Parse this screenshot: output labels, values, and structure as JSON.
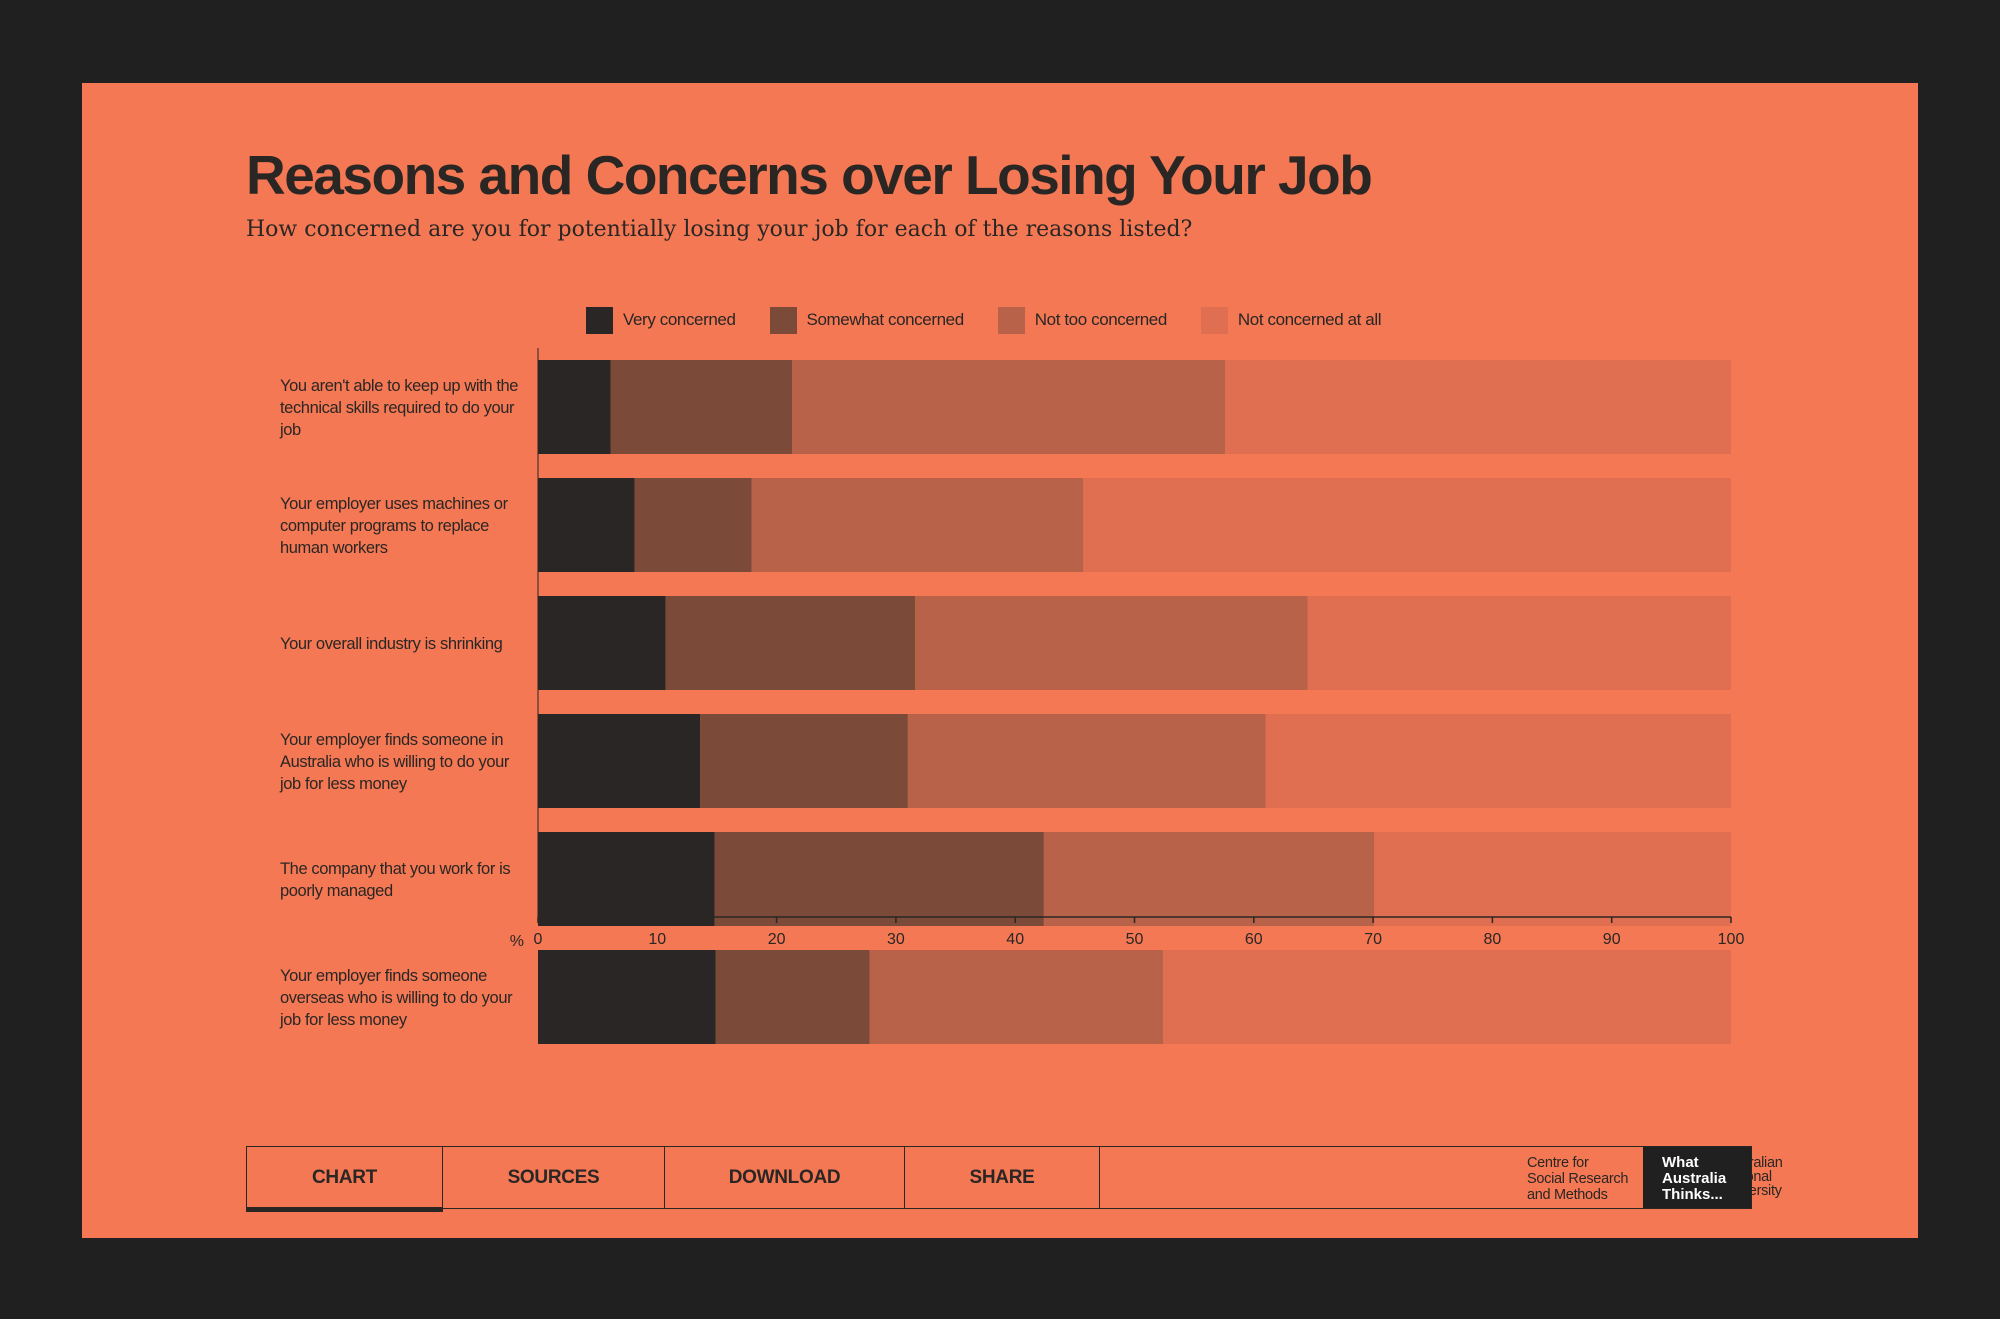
{
  "title": "Reasons and Concerns over Losing Your Job",
  "subtitle": "How concerned are you for potentially losing your job for each of the reasons listed?",
  "colors": {
    "background_outer": "#212021",
    "card": "#F47854",
    "very_concerned": "#2A2625",
    "somewhat_concerned": "#7B4A39",
    "not_too_concerned": "#B8624A",
    "not_concerned_at_all": "#E06F51"
  },
  "legend": [
    {
      "label": "Very concerned",
      "color": "#2A2625"
    },
    {
      "label": "Somewhat concerned",
      "color": "#7B4A39"
    },
    {
      "label": "Not too concerned",
      "color": "#B8624A"
    },
    {
      "label": "Not concerned at all",
      "color": "#E06F51"
    }
  ],
  "chart_data": {
    "type": "bar",
    "orientation": "horizontal",
    "stacked": true,
    "title": "Reasons and Concerns over Losing Your Job",
    "subtitle": "How concerned are you for potentially losing your job for each of the reasons listed?",
    "xlabel": "%",
    "ylabel": "",
    "xlim": [
      0,
      100
    ],
    "xticks": [
      0,
      10,
      20,
      30,
      40,
      50,
      60,
      70,
      80,
      90,
      100
    ],
    "legend_position": "top",
    "grid": false,
    "categories": [
      [
        "You aren't able to keep up with the",
        "technical skills required to do your",
        "job"
      ],
      [
        "Your employer uses machines or",
        "computer programs to replace",
        "human workers"
      ],
      [
        "Your overall industry is shrinking"
      ],
      [
        "Your employer finds someone in",
        "Australia who is willing to do your",
        "job for less money"
      ],
      [
        "The company that you work for is",
        "poorly managed"
      ],
      [
        "Your employer finds someone",
        "overseas who is willing to do your",
        "job for less money"
      ]
    ],
    "series": [
      {
        "name": "Very concerned",
        "values": [
          6.1,
          8.1,
          10.7,
          13.6,
          14.8,
          14.9
        ]
      },
      {
        "name": "Somewhat concerned",
        "values": [
          15.2,
          9.8,
          20.9,
          17.4,
          27.6,
          12.9
        ]
      },
      {
        "name": "Not too concerned",
        "values": [
          36.3,
          27.8,
          32.9,
          30.0,
          27.7,
          24.6
        ]
      },
      {
        "name": "Not concerned at all",
        "values": [
          42.4,
          54.3,
          35.5,
          39.0,
          29.9,
          47.6
        ]
      }
    ]
  },
  "toolbar": {
    "tabs": [
      "CHART",
      "SOURCES",
      "DOWNLOAD",
      "SHARE"
    ],
    "active_tab": "CHART"
  },
  "footer": {
    "csrm_lines": [
      "Centre for",
      "Social Research",
      "and Methods"
    ],
    "anu_lines": [
      "Australian",
      "National",
      "University"
    ],
    "wat_lines": [
      "What",
      "Australia",
      "Thinks..."
    ]
  }
}
